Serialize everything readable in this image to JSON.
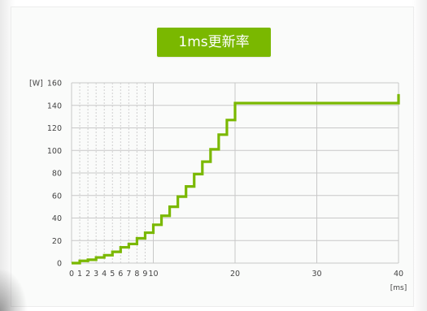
{
  "chart_data": {
    "type": "line",
    "title": "1ms更新率",
    "ylabel": "[W]",
    "xlabel": "[ms]",
    "xlim": [
      0,
      40
    ],
    "ylim": [
      0,
      160
    ],
    "x_ticks": [
      0,
      1,
      2,
      3,
      4,
      5,
      6,
      7,
      8,
      9,
      10,
      20,
      30,
      40
    ],
    "y_ticks": [
      0,
      20,
      40,
      60,
      80,
      100,
      120,
      140,
      160
    ],
    "grid": true,
    "series": [
      {
        "step": "post",
        "x": [
          0,
          1,
          2,
          3,
          4,
          5,
          6,
          7,
          8,
          9,
          10,
          11,
          12,
          13,
          14,
          15,
          16,
          17,
          18,
          19,
          20,
          40
        ],
        "y": [
          0,
          2,
          3,
          5,
          7,
          10,
          14,
          17,
          22,
          27,
          34,
          42,
          50,
          59,
          68,
          79,
          90,
          101,
          114,
          127,
          142,
          150
        ]
      }
    ]
  },
  "colors": {
    "series": "#7ab800",
    "grid_major": "#c8c8c8",
    "grid_minor": "#cfcfcf",
    "badge": "#7ab800"
  }
}
